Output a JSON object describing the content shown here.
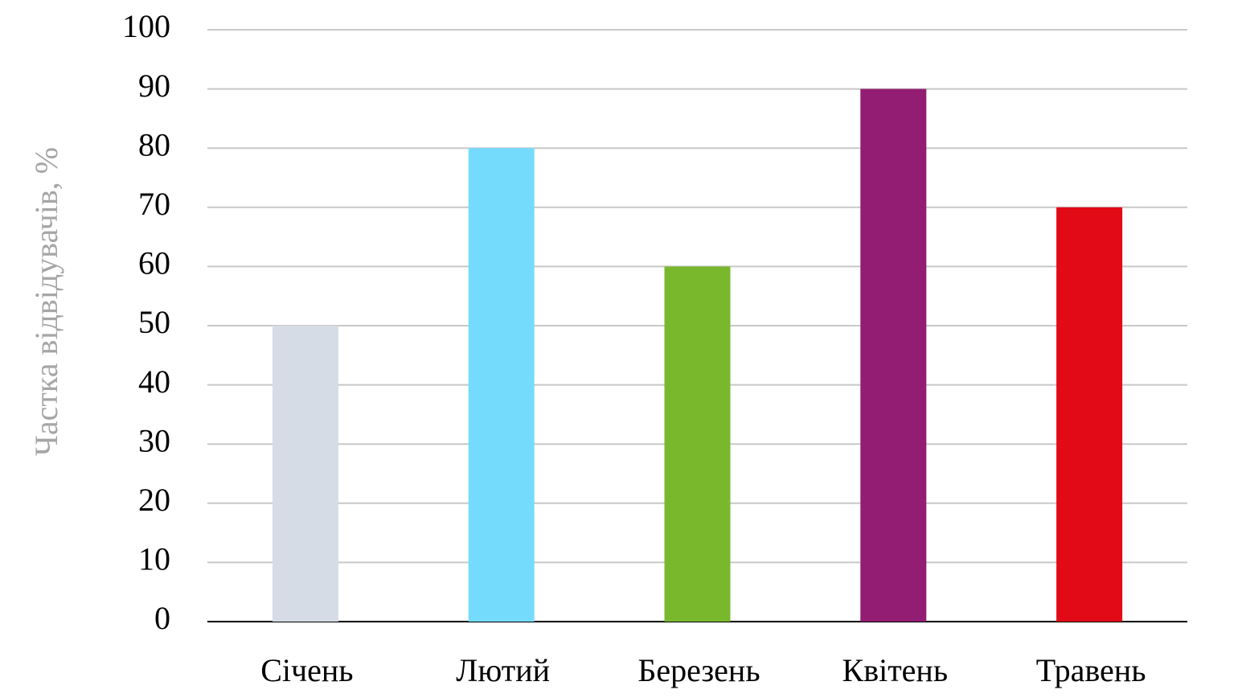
{
  "chart_data": {
    "type": "bar",
    "y_label": "Частка відвідувачів, %",
    "categories": [
      "Січень",
      "Лютий",
      "Березень",
      "Квітень",
      "Травень"
    ],
    "values": [
      50,
      80,
      60,
      90,
      70
    ],
    "colors": [
      "#d6dce5",
      "#75dbfd",
      "#79b82d",
      "#921d72",
      "#e20a16"
    ],
    "ylim": [
      0,
      100
    ],
    "yticks": [
      0,
      10,
      20,
      30,
      40,
      50,
      60,
      70,
      80,
      90,
      100
    ],
    "grid": true
  }
}
